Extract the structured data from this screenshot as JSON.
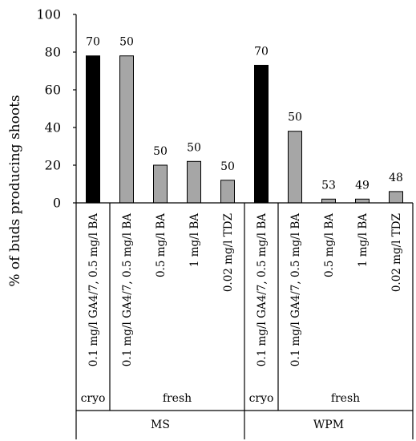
{
  "chart_data": {
    "type": "bar",
    "ylabel": "% of buds producing shoots",
    "ylim": [
      0,
      100
    ],
    "yticks": [
      0,
      20,
      40,
      60,
      80,
      100
    ],
    "categories": [
      "0.1 mg/l GA4/7, 0.5 mg/l BA",
      "0.1 mg/l GA4/7, 0.5 mg/l BA",
      "0.5 mg/l BA",
      "1 mg/l BA",
      "0.02 mg/l TDZ",
      "0.1 mg/l GA4/7, 0.5 mg/l BA",
      "0.1 mg/l GA4/7, 0.5 mg/l BA",
      "0.5 mg/l BA",
      "1 mg/l BA",
      "0.02 mg/l TDZ"
    ],
    "values": [
      78,
      78,
      20,
      22,
      12,
      73,
      38,
      2,
      2,
      6
    ],
    "data_labels": [
      "70",
      "50",
      "50",
      "50",
      "50",
      "70",
      "50",
      "53",
      "49",
      "48"
    ],
    "bar_colors": [
      "#000000",
      "#a6a6a6",
      "#a6a6a6",
      "#a6a6a6",
      "#a6a6a6",
      "#000000",
      "#a6a6a6",
      "#a6a6a6",
      "#a6a6a6",
      "#a6a6a6"
    ],
    "subgroups": [
      "cryo",
      "fresh",
      "cryo",
      "fresh"
    ],
    "groups": [
      "MS",
      "WPM"
    ]
  }
}
